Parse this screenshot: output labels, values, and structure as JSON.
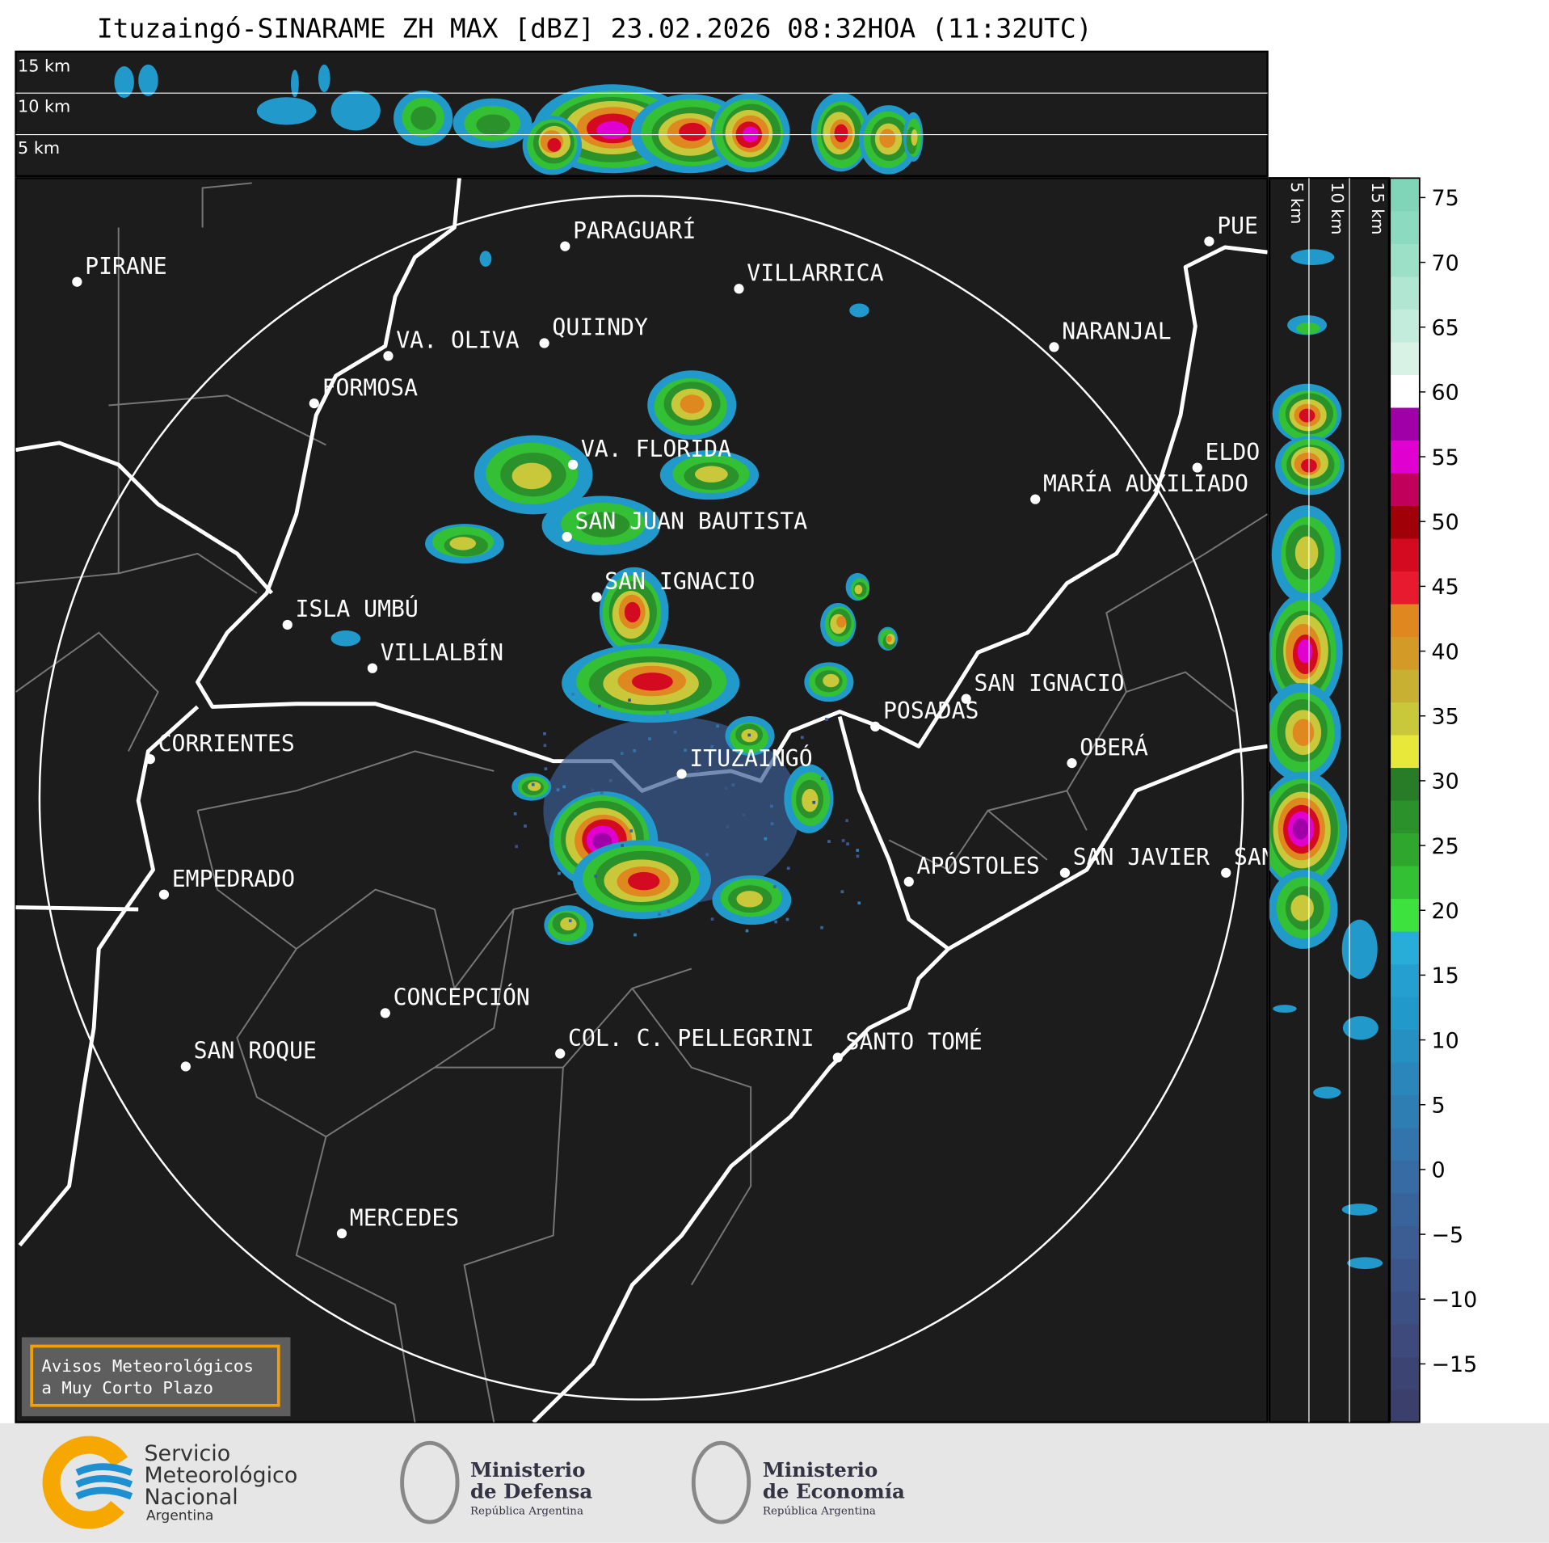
{
  "title": "Ituzaingó-SINARAME ZH MAX [dBZ] 23.02.2026 08:32HOA (11:32UTC)",
  "height_labels": [
    "15 km",
    "10 km",
    "5 km"
  ],
  "side_height_labels": [
    "5 km",
    "10 km",
    "15 km"
  ],
  "places": [
    "PIRANE",
    "PARAGUARÍ",
    "VILLARRICA",
    "VA. OLIVA",
    "QUIINDY",
    "NARANJAL",
    "FORMOSA",
    "VA. FLORIDA",
    "ELDO",
    "MARÍA AUXILIADO",
    "SAN JUAN BAUTISTA",
    "SAN IGNACIO",
    "ISLA UMBÚ",
    "VILLALBÍN",
    "SAN IGNACIO",
    "POSADAS",
    "CORRIENTES",
    "OBERÁ",
    "ITUZAINGÓ",
    "EMPEDRADO",
    "APÓSTOLES",
    "SAN JAVIER",
    "SAN",
    "CONCEPCIÓN",
    "COL. C. PELLEGRINI",
    "SANTO TOMÉ",
    "SAN ROQUE",
    "MERCEDES",
    "PUE"
  ],
  "colorbar": {
    "range": [
      -19.5,
      76.5
    ],
    "ticks": [
      75,
      70,
      65,
      60,
      55,
      50,
      45,
      40,
      35,
      30,
      25,
      20,
      15,
      10,
      5,
      0,
      {
        "value": -5,
        "label": "−5"
      },
      {
        "value": -10,
        "label": "−10"
      },
      {
        "value": -15,
        "label": "−15"
      }
    ],
    "colors": [
      "#3b3f6b",
      "#3c4473",
      "#3d4a7b",
      "#3d5083",
      "#3c568b",
      "#3b5d93",
      "#39649b",
      "#366ca3",
      "#3274ab",
      "#2e7db3",
      "#2a86bb",
      "#2690c3",
      "#2299cb",
      "#249fd0",
      "#28acd8",
      "#3ee23e",
      "#34c034",
      "#2fa72f",
      "#2b922b",
      "#287c28",
      "#e8e83a",
      "#c8c83a",
      "#c8b032",
      "#d49a28",
      "#e08820",
      "#e81a30",
      "#d40a20",
      "#a00008",
      "#c0005a",
      "#e000d0",
      "#a000a8",
      "#ffffff",
      "#d8f2e6",
      "#c4ecdc",
      "#b0e6d2",
      "#9ce0c8",
      "#8cdac0",
      "#80d4b8"
    ]
  },
  "notice": [
    "Avisos Meteorológicos",
    "a Muy Corto Plazo"
  ],
  "logos": {
    "smn": [
      "Servicio",
      "Meteorológico",
      "Nacional",
      "Argentina"
    ],
    "defensa": [
      "Ministerio",
      "de Defensa",
      "República Argentina"
    ],
    "economia": [
      "Ministerio",
      "de Economía",
      "República Argentina"
    ]
  }
}
